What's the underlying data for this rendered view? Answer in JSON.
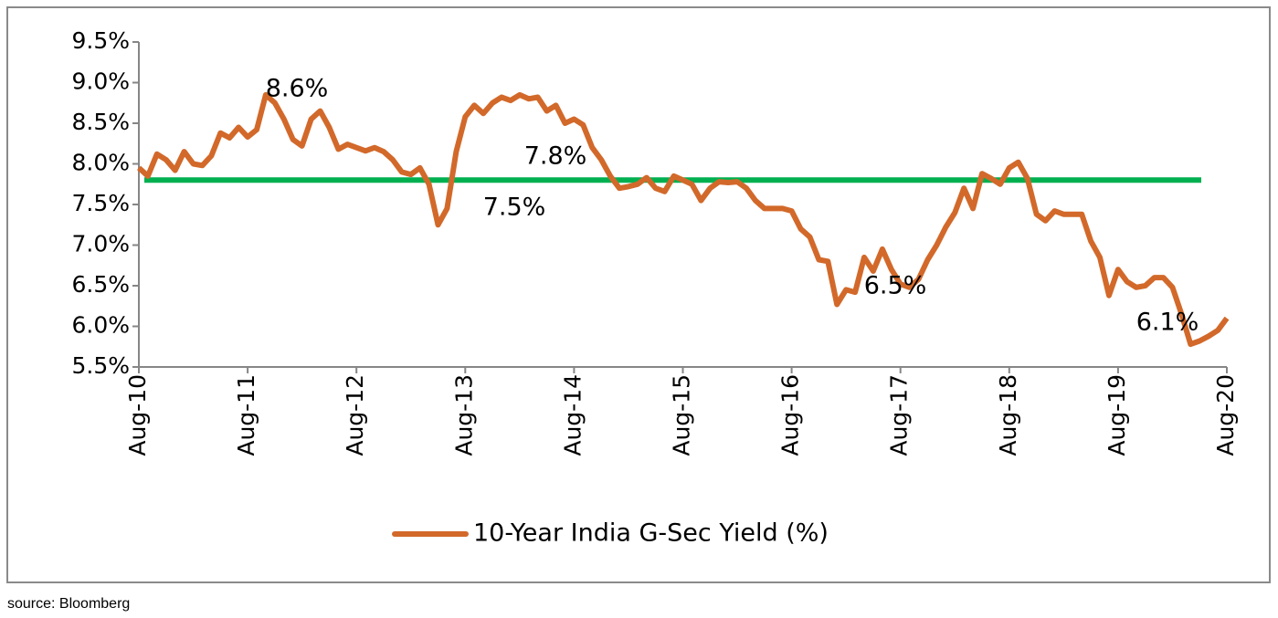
{
  "chart_data": {
    "type": "line",
    "categories": [
      "Aug-10",
      null,
      null,
      null,
      null,
      null,
      null,
      null,
      null,
      null,
      null,
      null,
      "Aug-11",
      null,
      null,
      null,
      null,
      null,
      null,
      null,
      null,
      null,
      null,
      null,
      "Aug-12",
      null,
      null,
      null,
      null,
      null,
      null,
      null,
      null,
      null,
      null,
      null,
      "Aug-13",
      null,
      null,
      null,
      null,
      null,
      null,
      null,
      null,
      null,
      null,
      null,
      "Aug-14",
      null,
      null,
      null,
      null,
      null,
      null,
      null,
      null,
      null,
      null,
      null,
      "Aug-15",
      null,
      null,
      null,
      null,
      null,
      null,
      null,
      null,
      null,
      null,
      null,
      "Aug-16",
      null,
      null,
      null,
      null,
      null,
      null,
      null,
      null,
      null,
      null,
      null,
      "Aug-17",
      null,
      null,
      null,
      null,
      null,
      null,
      null,
      null,
      null,
      null,
      null,
      "Aug-18",
      null,
      null,
      null,
      null,
      null,
      null,
      null,
      null,
      null,
      null,
      null,
      "Aug-19",
      null,
      null,
      null,
      null,
      null,
      null,
      null,
      null,
      null,
      null,
      null,
      "Aug-20"
    ],
    "series": [
      {
        "name": "10-Year India G-Sec Yield (%)",
        "color": "#d2692a",
        "values": [
          7.95,
          7.85,
          8.12,
          8.05,
          7.92,
          8.15,
          8.0,
          7.98,
          8.1,
          8.38,
          8.32,
          8.45,
          8.33,
          8.42,
          8.85,
          8.75,
          8.55,
          8.3,
          8.22,
          8.55,
          8.65,
          8.45,
          8.18,
          8.24,
          8.2,
          8.16,
          8.2,
          8.15,
          8.05,
          7.9,
          7.87,
          7.95,
          7.75,
          7.25,
          7.45,
          8.15,
          8.58,
          8.72,
          8.62,
          8.75,
          8.82,
          8.78,
          8.85,
          8.8,
          8.82,
          8.65,
          8.72,
          8.5,
          8.55,
          8.48,
          8.2,
          8.05,
          7.85,
          7.7,
          7.72,
          7.75,
          7.83,
          7.7,
          7.66,
          7.85,
          7.8,
          7.75,
          7.55,
          7.7,
          7.78,
          7.77,
          7.78,
          7.7,
          7.55,
          7.45,
          7.45,
          7.45,
          7.42,
          7.2,
          7.1,
          6.82,
          6.8,
          6.27,
          6.45,
          6.42,
          6.85,
          6.68,
          6.95,
          6.7,
          6.52,
          6.48,
          6.58,
          6.82,
          7.0,
          7.22,
          7.4,
          7.7,
          7.45,
          7.88,
          7.82,
          7.75,
          7.95,
          8.02,
          7.82,
          7.38,
          7.3,
          7.42,
          7.38,
          7.38,
          7.38,
          7.05,
          6.85,
          6.38,
          6.7,
          6.55,
          6.48,
          6.5,
          6.6,
          6.6,
          6.48,
          6.15,
          5.78,
          5.82,
          5.88,
          5.95,
          6.1
        ]
      }
    ],
    "average_line": {
      "value": 7.8,
      "label": "7.8%",
      "color": "#00b050"
    },
    "annotations": [
      {
        "value": 8.6,
        "label": "8.6%"
      },
      {
        "value": 7.5,
        "label": "7.5%"
      },
      {
        "value": 6.5,
        "label": "6.5%"
      },
      {
        "value": 6.1,
        "label": "6.1%"
      }
    ],
    "ylim": [
      5.5,
      9.5
    ],
    "yticks": [
      {
        "value": 5.5,
        "label": "5.5%"
      },
      {
        "value": 6.0,
        "label": "6.0%"
      },
      {
        "value": 6.5,
        "label": "6.5%"
      },
      {
        "value": 7.0,
        "label": "7.0%"
      },
      {
        "value": 7.5,
        "label": "7.5%"
      },
      {
        "value": 8.0,
        "label": "8.0%"
      },
      {
        "value": 8.5,
        "label": "8.5%"
      },
      {
        "value": 9.0,
        "label": "9.0%"
      },
      {
        "value": 9.5,
        "label": "9.5%"
      }
    ],
    "legend": "bottom",
    "source": "source: Bloomberg"
  }
}
